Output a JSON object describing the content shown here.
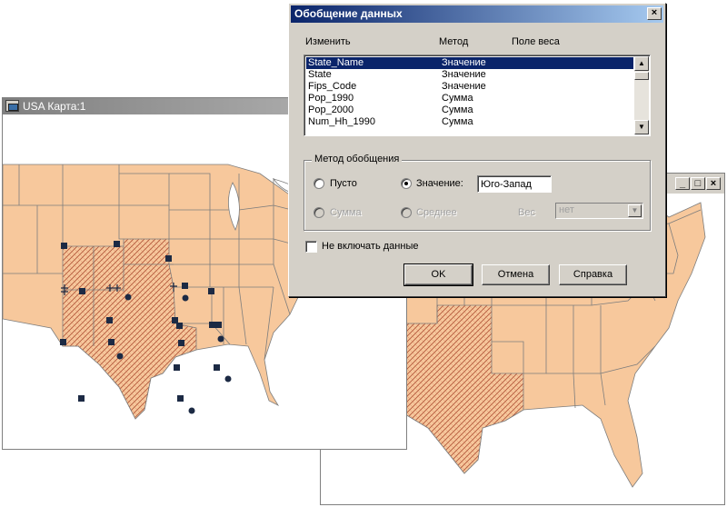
{
  "map_window_left": {
    "title": "USA Карта:1"
  },
  "map_window_right": {
    "buttons": {
      "minimize": "_",
      "maximize": "□",
      "close": "×"
    }
  },
  "dialog": {
    "title": "Обобщение данных",
    "close_label": "×",
    "columns": {
      "change": "Изменить",
      "method": "Метод",
      "weight": "Поле веса"
    },
    "rows": [
      {
        "field": "State_Name",
        "method": "Значение",
        "selected": true
      },
      {
        "field": "State",
        "method": "Значение",
        "selected": false
      },
      {
        "field": "Fips_Code",
        "method": "Значение",
        "selected": false
      },
      {
        "field": "Pop_1990",
        "method": "Сумма",
        "selected": false
      },
      {
        "field": "Pop_2000",
        "method": "Сумма",
        "selected": false
      },
      {
        "field": "Num_Hh_1990",
        "method": "Сумма",
        "selected": false
      }
    ],
    "group": {
      "label": "Метод обобщения",
      "empty_label": "Пусто",
      "value_label": "Значение:",
      "value_input": "Юго-Запад",
      "sum_label": "Сумма",
      "average_label": "Среднее",
      "weight_label": "Вес",
      "weight_select": "нет"
    },
    "exclude_checkbox_label": "Не включать данные",
    "buttons": {
      "ok": "OK",
      "cancel": "Отмена",
      "help": "Справка"
    }
  },
  "colors": {
    "state_fill": "#f7c89c",
    "selected_row": "#0a246a",
    "dialog_face": "#d4d0c8"
  }
}
